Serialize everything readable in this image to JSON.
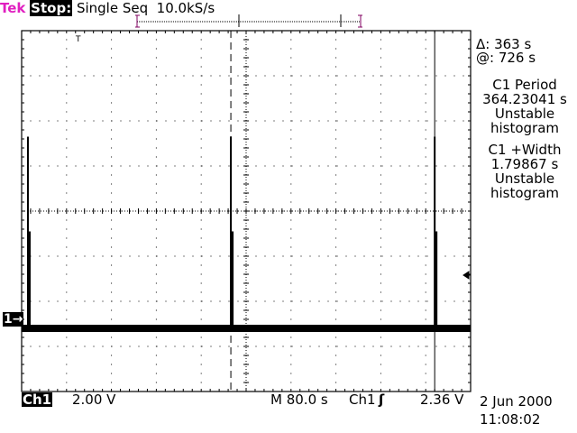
{
  "header": {
    "brand": "Tek",
    "state": "Stop:",
    "mode": "Single Seq",
    "sample_rate": "10.0kS/s"
  },
  "cursors": {
    "delta": "Δ: 363 s",
    "at": "@: 726 s"
  },
  "measurements": [
    {
      "name": "C1 Period",
      "value": "364.23041 s",
      "status1": "Unstable",
      "status2": "histogram"
    },
    {
      "name": "C1 +Width",
      "value": "1.79867 s",
      "status1": "Unstable",
      "status2": "histogram"
    }
  ],
  "footer": {
    "channel": "Ch1",
    "volts_per_div": "2.00 V",
    "timebase": "M  80.0 s",
    "trigger_source": "Ch1",
    "trigger_slope_icon": "rising-edge-icon",
    "trigger_level": "2.36 V",
    "date": "2 Jun 2000",
    "time": "11:08:02"
  },
  "channel_marker": "1→",
  "colors": {
    "brand": "#e020c0",
    "trace": "#000000",
    "background": "#ffffff"
  },
  "chart_data": {
    "type": "line",
    "x_unit": "s",
    "y_unit": "V",
    "xlim": [
      0,
      800
    ],
    "ylim": [
      -2.8,
      13.2
    ],
    "x_per_div": 80,
    "y_per_div": 2,
    "grid": true,
    "baseline_v": 0,
    "pulses": [
      {
        "t": 11.2,
        "peak_v": 8.5,
        "shoulder_v": 4.3
      },
      {
        "t": 372.8,
        "peak_v": 8.5,
        "shoulder_v": 4.3
      },
      {
        "t": 736,
        "peak_v": 8.5,
        "shoulder_v": 4.3
      }
    ],
    "cursor_times": [
      372.8,
      736
    ],
    "trigger_level_v": 2.36
  }
}
